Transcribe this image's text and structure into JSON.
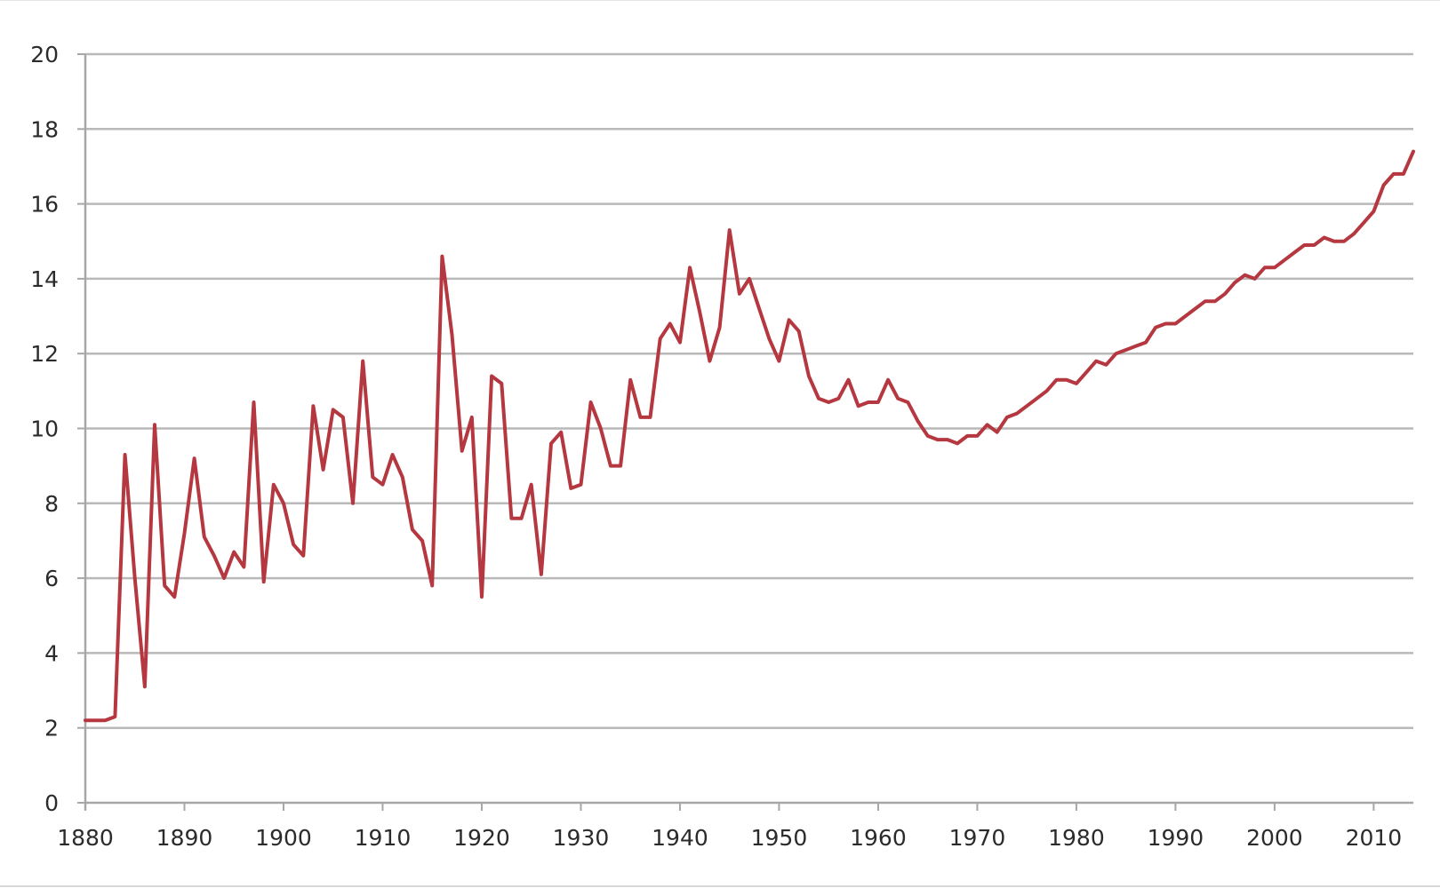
{
  "chart_data": {
    "type": "line",
    "title": "",
    "xlabel": "",
    "ylabel": "",
    "xlim": [
      1880,
      2014
    ],
    "ylim": [
      0,
      20
    ],
    "grid": true,
    "legend": "none",
    "x_ticks": [
      "1880",
      "1890",
      "1900",
      "1910",
      "1920",
      "1930",
      "1940",
      "1950",
      "1960",
      "1970",
      "1980",
      "1990",
      "2000",
      "2010"
    ],
    "y_ticks": [
      "0",
      "2",
      "4",
      "6",
      "8",
      "10",
      "12",
      "14",
      "16",
      "18",
      "20"
    ],
    "colors": {
      "line": "#b5373f",
      "grid": "#b9b9b9",
      "axis": "#a7a7a7"
    },
    "series": [
      {
        "x": [
          1880,
          1881,
          1882,
          1883,
          1884,
          1885,
          1886,
          1887,
          1888,
          1889,
          1890,
          1891,
          1892,
          1893,
          1894,
          1895,
          1896,
          1897,
          1898,
          1899,
          1900,
          1901,
          1902,
          1903,
          1904,
          1905,
          1906,
          1907,
          1908,
          1909,
          1910,
          1911,
          1912,
          1913,
          1914,
          1915,
          1916,
          1917,
          1918,
          1919,
          1920,
          1921,
          1922,
          1923,
          1924,
          1925,
          1926,
          1927,
          1928,
          1929,
          1930,
          1931,
          1932,
          1933,
          1934,
          1935,
          1936,
          1937,
          1938,
          1939,
          1940,
          1941,
          1942,
          1943,
          1944,
          1945,
          1946,
          1947,
          1948,
          1949,
          1950,
          1951,
          1952,
          1953,
          1954,
          1955,
          1956,
          1957,
          1958,
          1959,
          1960,
          1961,
          1962,
          1963,
          1964,
          1965,
          1966,
          1967,
          1968,
          1969,
          1970,
          1971,
          1972,
          1973,
          1974,
          1975,
          1976,
          1977,
          1978,
          1979,
          1980,
          1981,
          1982,
          1983,
          1984,
          1985,
          1986,
          1987,
          1988,
          1989,
          1990,
          1991,
          1992,
          1993,
          1994,
          1995,
          1996,
          1997,
          1998,
          1999,
          2000,
          2001,
          2002,
          2003,
          2004,
          2005,
          2006,
          2007,
          2008,
          2009,
          2010,
          2011,
          2012,
          2013,
          2014
        ],
        "values": [
          2.2,
          2.2,
          2.2,
          2.3,
          9.3,
          6.0,
          3.1,
          10.1,
          5.8,
          5.5,
          7.2,
          9.2,
          7.1,
          6.6,
          6.0,
          6.7,
          6.3,
          10.7,
          5.9,
          8.5,
          8.0,
          6.9,
          6.6,
          10.6,
          8.9,
          10.5,
          10.3,
          8.0,
          11.8,
          8.7,
          8.5,
          9.3,
          8.7,
          7.3,
          7.0,
          5.8,
          14.6,
          12.5,
          9.4,
          10.3,
          5.5,
          11.4,
          11.2,
          7.6,
          7.6,
          8.5,
          6.1,
          9.6,
          9.9,
          8.4,
          8.5,
          10.7,
          10.0,
          9.0,
          9.0,
          11.3,
          10.3,
          10.3,
          12.4,
          12.8,
          12.3,
          14.3,
          13.1,
          11.8,
          12.7,
          15.3,
          13.6,
          14.0,
          13.2,
          12.4,
          11.8,
          12.9,
          12.6,
          11.4,
          10.8,
          10.7,
          10.8,
          11.3,
          10.6,
          10.7,
          10.7,
          11.3,
          10.8,
          10.7,
          10.2,
          9.8,
          9.7,
          9.7,
          9.6,
          9.8,
          9.8,
          10.1,
          9.9,
          10.3,
          10.4,
          10.6,
          10.8,
          11.0,
          11.3,
          11.3,
          11.2,
          11.5,
          11.8,
          11.7,
          12.0,
          12.1,
          12.2,
          12.3,
          12.7,
          12.8,
          12.8,
          13.0,
          13.2,
          13.4,
          13.4,
          13.6,
          13.9,
          14.1,
          14.0,
          14.3,
          14.3,
          14.5,
          14.7,
          14.9,
          14.9,
          15.1,
          15.0,
          15.0,
          15.2,
          15.5,
          15.8,
          16.5,
          16.8,
          16.8,
          17.4
        ]
      }
    ]
  }
}
